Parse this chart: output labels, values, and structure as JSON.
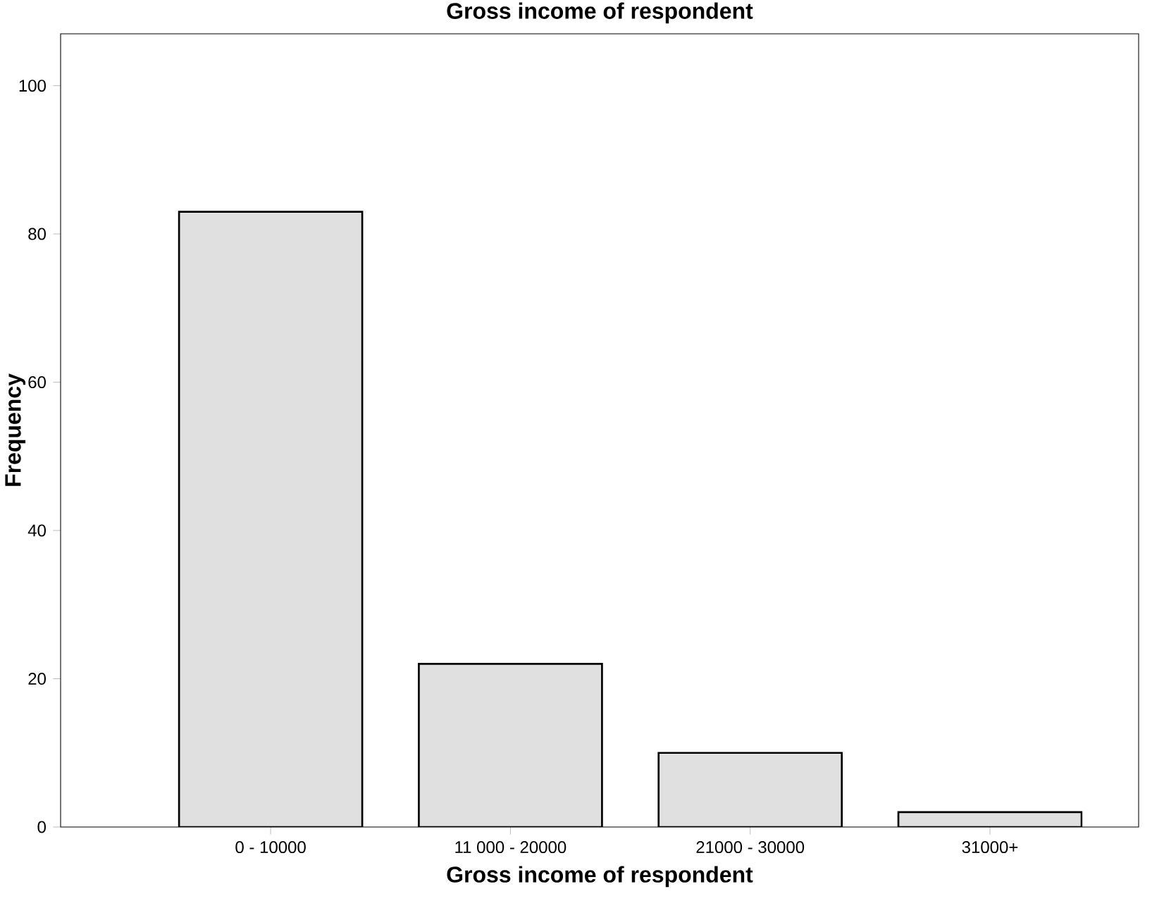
{
  "chart_data": {
    "type": "bar",
    "title": "Gross income of respondent",
    "xlabel": "Gross income of respondent",
    "ylabel": "Frequency",
    "categories": [
      "0 - 10000",
      "11 000 - 20000",
      "21000 - 30000",
      "31000+"
    ],
    "values": [
      83,
      22,
      10,
      2
    ],
    "color": "#e0e0e0",
    "ylim": [
      0,
      107
    ],
    "yticks": [
      0,
      20,
      40,
      60,
      80,
      100
    ],
    "grid": false
  }
}
